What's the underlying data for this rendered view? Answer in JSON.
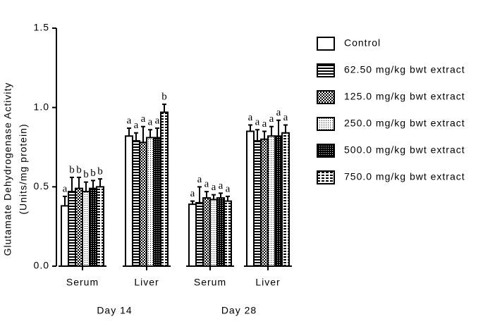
{
  "chart_data": {
    "type": "bar",
    "y_label": [
      "Glutamate Dehydrogenase Activity",
      "(Units/mg protein)"
    ],
    "categories": [
      "Serum",
      "Liver",
      "Serum",
      "Liver"
    ],
    "group_labels": [
      "Day 14",
      "Day 28"
    ],
    "ylim": [
      0,
      1.5
    ],
    "yticks": [
      {
        "value": 0,
        "label": "0.0"
      },
      {
        "value": 0.5,
        "label": "0.5"
      },
      {
        "value": 1,
        "label": "1.0"
      },
      {
        "value": 1.5,
        "label": "1.5"
      }
    ],
    "series": [
      {
        "name": "Control",
        "color": "#000000",
        "values": [
          0.38,
          0.82,
          0.39,
          0.85
        ],
        "errors": [
          0.06,
          0.05,
          0.02,
          0.04
        ],
        "letters": [
          "a",
          "a",
          "a",
          "a"
        ]
      },
      {
        "name": "62.50 mg/kg bwt extract",
        "color": "#000000",
        "values": [
          0.47,
          0.79,
          0.4,
          0.79
        ],
        "errors": [
          0.09,
          0.05,
          0.1,
          0.07
        ],
        "letters": [
          "b",
          "a",
          "a",
          "a"
        ]
      },
      {
        "name": "125.0 mg/kg bwt extract",
        "color": "#000000",
        "values": [
          0.49,
          0.78,
          0.43,
          0.8
        ],
        "errors": [
          0.07,
          0.1,
          0.04,
          0.05
        ],
        "letters": [
          "b",
          "a",
          "a",
          "a"
        ]
      },
      {
        "name": "250.0 mg/kg bwt extract",
        "color": "#000000",
        "values": [
          0.47,
          0.81,
          0.42,
          0.82
        ],
        "errors": [
          0.06,
          0.05,
          0.03,
          0.06
        ],
        "letters": [
          "b",
          "a",
          "a",
          "a"
        ]
      },
      {
        "name": "500.0 mg/kg bwt extract",
        "color": "#000000",
        "values": [
          0.49,
          0.81,
          0.43,
          0.82
        ],
        "errors": [
          0.05,
          0.06,
          0.03,
          0.1
        ],
        "letters": [
          "b",
          "a",
          "a",
          "a"
        ]
      },
      {
        "name": "750.0 mg/kg bwt extract",
        "color": "#000000",
        "values": [
          0.5,
          0.97,
          0.41,
          0.84
        ],
        "errors": [
          0.05,
          0.05,
          0.03,
          0.05
        ],
        "letters": [
          "b",
          "b",
          "a",
          "a"
        ]
      }
    ]
  }
}
